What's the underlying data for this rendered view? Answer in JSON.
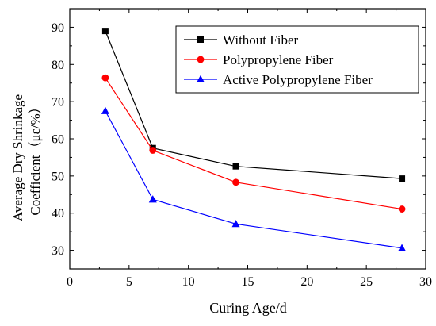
{
  "chart_data": {
    "type": "line",
    "xlabel": "Curing Age/d",
    "ylabel_lines": [
      "Average Dry Shrinkage",
      "Coefficient（με/%）"
    ],
    "xlim": [
      0,
      30
    ],
    "ylim": [
      25,
      95
    ],
    "xticks": [
      "0",
      "5",
      "10",
      "15",
      "20",
      "25",
      "30"
    ],
    "yticks": [
      "30",
      "40",
      "50",
      "60",
      "70",
      "80",
      "90"
    ],
    "grid": false,
    "legend_position": "top-right",
    "x": [
      3,
      7,
      14,
      28
    ],
    "series": [
      {
        "name": "Without Fiber",
        "color": "#000000",
        "marker": "square",
        "values": [
          89.0,
          57.5,
          52.6,
          49.3
        ]
      },
      {
        "name": "Polypropylene Fiber",
        "color": "#ff0000",
        "marker": "circle",
        "values": [
          76.4,
          56.9,
          48.3,
          41.1
        ]
      },
      {
        "name": "Active Polypropylene Fiber",
        "color": "#0000ff",
        "marker": "triangle",
        "values": [
          67.5,
          43.7,
          37.1,
          30.6
        ]
      }
    ]
  }
}
